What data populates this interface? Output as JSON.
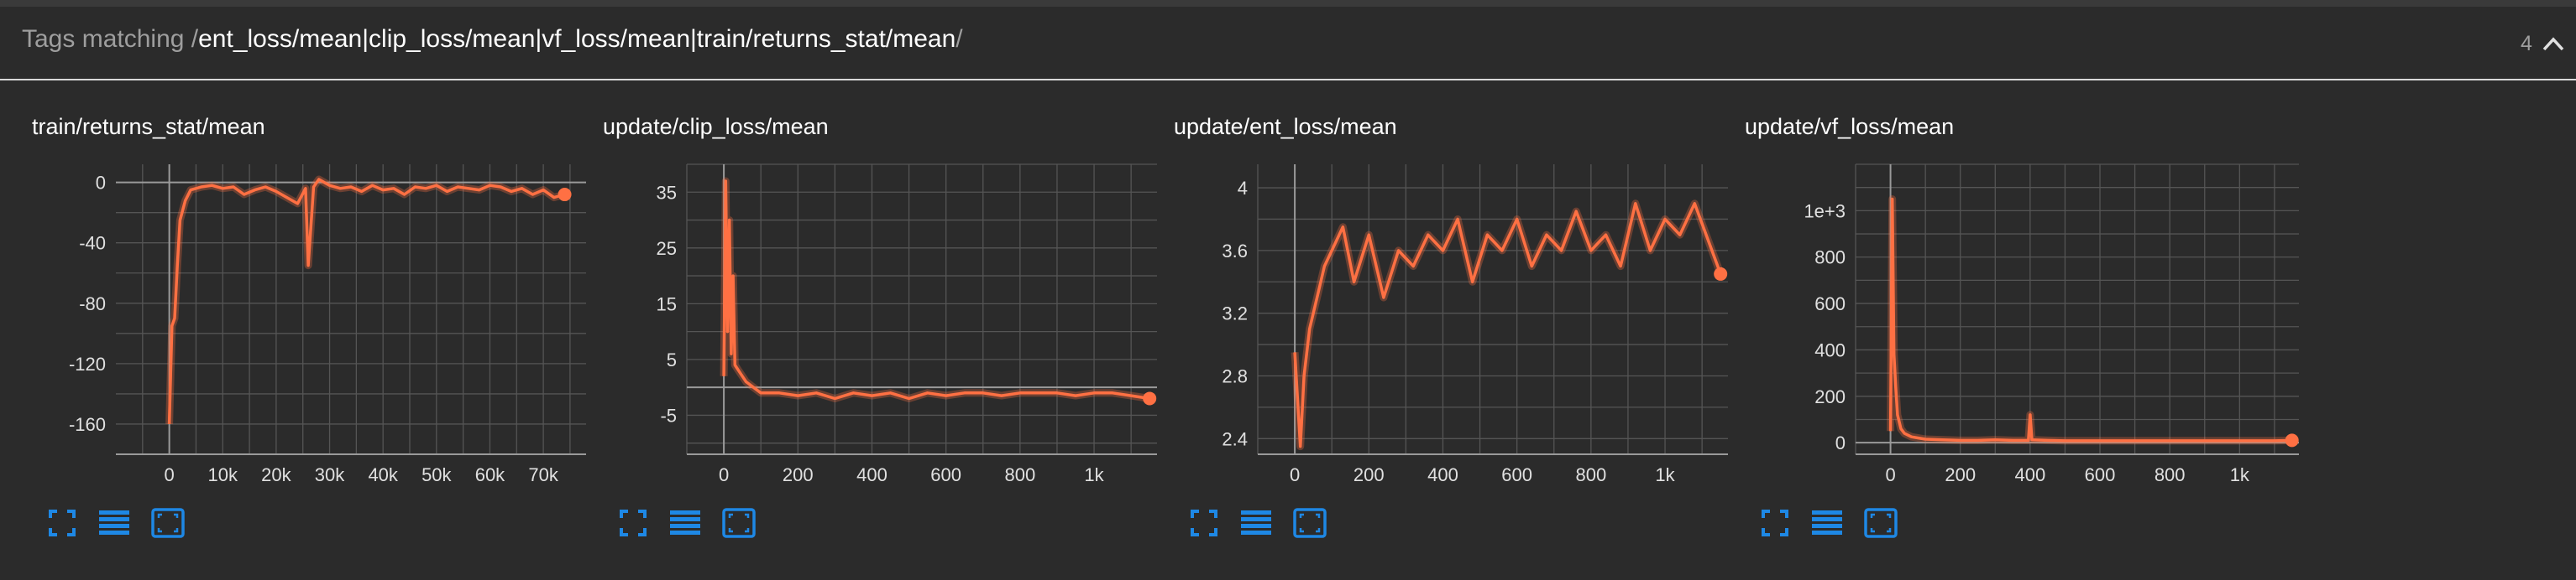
{
  "header": {
    "prefix": "Tags matching ",
    "slash_open": "/",
    "regex": "ent_loss/mean|clip_loss/mean|vf_loss/mean|train/returns_stat/mean",
    "slash_close": "/",
    "count": "4",
    "collapse_icon": "chevron-up-icon"
  },
  "colors": {
    "background": "#2b2b2b",
    "series": "#ff7043",
    "grid": "#555555",
    "accent_icon": "#1e88e5"
  },
  "cards": [
    {
      "title": "train/returns_stat/mean",
      "icons": [
        "fullscreen-icon",
        "data-table-icon",
        "fit-domain-icon"
      ],
      "chart_data": {
        "type": "line",
        "title": "train/returns_stat/mean",
        "xlim": [
          -10000,
          78000
        ],
        "ylim": [
          -180,
          12
        ],
        "xticks": [
          0,
          10000,
          20000,
          30000,
          40000,
          50000,
          60000,
          70000
        ],
        "xtick_labels": [
          "0",
          "10k",
          "20k",
          "30k",
          "40k",
          "50k",
          "60k",
          "70k"
        ],
        "yticks": [
          -160,
          -120,
          -80,
          -40,
          0
        ],
        "ytick_labels": [
          "-160",
          "-120",
          "-80",
          "-40",
          "0"
        ],
        "grid": true,
        "series": [
          {
            "x": [
              0,
              500,
              1000,
              1500,
              2000,
              3000,
              4000,
              5000,
              6000,
              8000,
              10000,
              12000,
              14000,
              16000,
              18000,
              20000,
              22000,
              24000,
              25500,
              26000,
              27000,
              28000,
              30000,
              32000,
              34000,
              36000,
              38000,
              40000,
              42000,
              44000,
              46000,
              48000,
              50000,
              52000,
              54000,
              56000,
              58000,
              60000,
              62000,
              64000,
              66000,
              68000,
              70000,
              72000,
              74000
            ],
            "y": [
              -160,
              -95,
              -90,
              -55,
              -25,
              -12,
              -5,
              -4,
              -3,
              -2,
              -4,
              -3,
              -8,
              -5,
              -3,
              -6,
              -10,
              -14,
              -4,
              -55,
              -3,
              2,
              -2,
              -4,
              -3,
              -6,
              -2,
              -5,
              -4,
              -8,
              -3,
              -4,
              -2,
              -6,
              -3,
              -4,
              -5,
              -2,
              -3,
              -6,
              -4,
              -8,
              -5,
              -10,
              -8
            ]
          }
        ]
      }
    },
    {
      "title": "update/clip_loss/mean",
      "icons": [
        "fullscreen-icon",
        "data-table-icon",
        "fit-domain-icon"
      ],
      "chart_data": {
        "type": "line",
        "title": "update/clip_loss/mean",
        "xlim": [
          -100,
          1170
        ],
        "ylim": [
          -12,
          40
        ],
        "xticks": [
          0,
          200,
          400,
          600,
          800,
          1000
        ],
        "xtick_labels": [
          "0",
          "200",
          "400",
          "600",
          "800",
          "1k"
        ],
        "yticks": [
          -5,
          5,
          15,
          25,
          35
        ],
        "ytick_labels": [
          "-5",
          "5",
          "15",
          "25",
          "35"
        ],
        "grid": true,
        "series": [
          {
            "x": [
              0,
              5,
              10,
              15,
              20,
              25,
              30,
              40,
              50,
              60,
              80,
              100,
              150,
              200,
              250,
              300,
              350,
              400,
              450,
              500,
              550,
              600,
              650,
              700,
              750,
              800,
              850,
              900,
              950,
              1000,
              1050,
              1100,
              1150
            ],
            "y": [
              2,
              37,
              10,
              30,
              6,
              20,
              4,
              3,
              2,
              1,
              0,
              -1,
              -1,
              -1.5,
              -1,
              -2,
              -1,
              -1.5,
              -1,
              -2,
              -1,
              -1.5,
              -1,
              -1,
              -1.5,
              -1,
              -1,
              -1,
              -1.5,
              -1,
              -1,
              -1.5,
              -2
            ]
          }
        ]
      }
    },
    {
      "title": "update/ent_loss/mean",
      "icons": [
        "fullscreen-icon",
        "data-table-icon",
        "fit-domain-icon"
      ],
      "chart_data": {
        "type": "line",
        "title": "update/ent_loss/mean",
        "xlim": [
          -100,
          1170
        ],
        "ylim": [
          2.3,
          4.15
        ],
        "xticks": [
          0,
          200,
          400,
          600,
          800,
          1000
        ],
        "xtick_labels": [
          "0",
          "200",
          "400",
          "600",
          "800",
          "1k"
        ],
        "yticks": [
          2.4,
          2.8,
          3.2,
          3.6,
          4
        ],
        "ytick_labels": [
          "2.4",
          "2.8",
          "3.2",
          "3.6",
          "4"
        ],
        "grid": true,
        "series": [
          {
            "x": [
              0,
              15,
              25,
              40,
              60,
              80,
              100,
              130,
              160,
              200,
              240,
              280,
              320,
              360,
              400,
              440,
              480,
              520,
              560,
              600,
              640,
              680,
              720,
              760,
              800,
              840,
              880,
              920,
              960,
              1000,
              1040,
              1080,
              1150
            ],
            "y": [
              2.95,
              2.35,
              2.8,
              3.1,
              3.3,
              3.5,
              3.6,
              3.75,
              3.4,
              3.7,
              3.3,
              3.6,
              3.5,
              3.7,
              3.6,
              3.8,
              3.4,
              3.7,
              3.6,
              3.8,
              3.5,
              3.7,
              3.6,
              3.85,
              3.6,
              3.7,
              3.5,
              3.9,
              3.6,
              3.8,
              3.7,
              3.9,
              3.45
            ]
          }
        ]
      }
    },
    {
      "title": "update/vf_loss/mean",
      "icons": [
        "fullscreen-icon",
        "data-table-icon",
        "fit-domain-icon"
      ],
      "chart_data": {
        "type": "line",
        "title": "update/vf_loss/mean",
        "xlim": [
          -100,
          1170
        ],
        "ylim": [
          -50,
          1200
        ],
        "xticks": [
          0,
          200,
          400,
          600,
          800,
          1000
        ],
        "xtick_labels": [
          "0",
          "200",
          "400",
          "600",
          "800",
          "1k"
        ],
        "yticks": [
          0,
          200,
          400,
          600,
          800,
          1000
        ],
        "ytick_labels": [
          "0",
          "200",
          "400",
          "600",
          "800",
          "1e+3"
        ],
        "grid": true,
        "series": [
          {
            "x": [
              0,
              5,
              10,
              15,
              20,
              30,
              40,
              60,
              80,
              100,
              150,
              200,
              250,
              300,
              350,
              395,
              400,
              405,
              450,
              500,
              600,
              700,
              800,
              900,
              1000,
              1100,
              1150
            ],
            "y": [
              50,
              1050,
              380,
              240,
              120,
              60,
              40,
              25,
              20,
              15,
              12,
              10,
              10,
              12,
              10,
              10,
              120,
              12,
              10,
              8,
              8,
              8,
              8,
              8,
              8,
              8,
              10
            ]
          }
        ]
      }
    }
  ]
}
